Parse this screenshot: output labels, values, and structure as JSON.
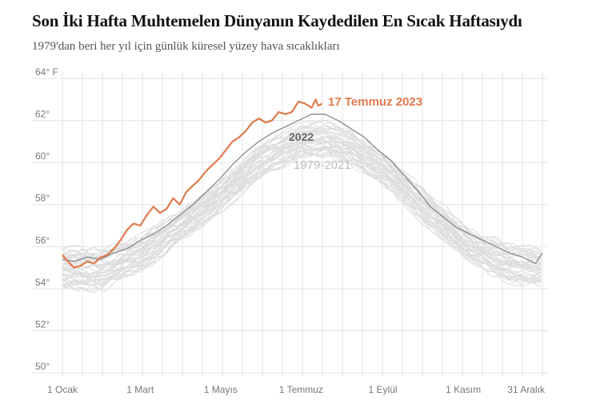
{
  "header": {
    "title": "Son İki Hafta Muhtemelen Dünyanın Kaydedilen En Sıcak Haftasıydı",
    "subtitle": "1979'dan beri her yıl için günlük küresel yüzey hava sıcaklıkları"
  },
  "colors": {
    "highlight": "#e07b4f",
    "year2022": "#888888",
    "history": "#dddddd",
    "grid": "#e3e3e3"
  },
  "chart_data": {
    "type": "line",
    "title": "Son İki Hafta Muhtemelen Dünyanın Kaydedilen En Sıcak Haftasıydı",
    "subtitle": "1979'dan beri her yıl için günlük küresel yüzey hava sıcaklıkları",
    "unit": "°F",
    "x_axis": {
      "range_day_of_year": [
        1,
        365
      ],
      "ticks": [
        {
          "day": 1,
          "label": "1 Ocak"
        },
        {
          "day": 60,
          "label": "1 Mart"
        },
        {
          "day": 121,
          "label": "1 Mayıs"
        },
        {
          "day": 182,
          "label": "1 Temmuz"
        },
        {
          "day": 244,
          "label": "1 Eylül"
        },
        {
          "day": 305,
          "label": "1 Kasım"
        },
        {
          "day": 365,
          "label": "31 Aralık"
        }
      ]
    },
    "y_axis": {
      "range": [
        50,
        64
      ],
      "ticks": [
        {
          "value": 64,
          "label": "64° F"
        },
        {
          "value": 62,
          "label": "62°"
        },
        {
          "value": 60,
          "label": "60°"
        },
        {
          "value": 58,
          "label": "58°"
        },
        {
          "value": 56,
          "label": "56°"
        },
        {
          "value": 54,
          "label": "54°"
        },
        {
          "value": 52,
          "label": "52°"
        },
        {
          "value": 50,
          "label": "50°"
        }
      ]
    },
    "grid": true,
    "series": [
      {
        "name": "17 Temmuz 2023",
        "color": "#e07b4f",
        "x": [
          1,
          5,
          10,
          15,
          20,
          25,
          30,
          35,
          40,
          45,
          50,
          55,
          60,
          65,
          70,
          75,
          80,
          85,
          90,
          95,
          100,
          105,
          110,
          115,
          120,
          125,
          130,
          135,
          140,
          145,
          150,
          155,
          160,
          165,
          170,
          175,
          180,
          185,
          190,
          193,
          195,
          198
        ],
        "y": [
          55.6,
          55.3,
          55.0,
          55.1,
          55.3,
          55.2,
          55.5,
          55.6,
          55.9,
          56.3,
          56.8,
          57.1,
          57.0,
          57.5,
          57.9,
          57.6,
          57.8,
          58.3,
          58.0,
          58.6,
          58.9,
          59.2,
          59.6,
          59.9,
          60.2,
          60.6,
          61.0,
          61.2,
          61.5,
          61.9,
          62.1,
          61.9,
          62.0,
          62.4,
          62.3,
          62.4,
          62.9,
          62.8,
          62.6,
          63.0,
          62.7,
          62.8
        ]
      },
      {
        "name": "2022",
        "color": "#888888",
        "x": [
          1,
          10,
          20,
          30,
          40,
          50,
          60,
          70,
          80,
          90,
          100,
          110,
          120,
          130,
          140,
          150,
          160,
          170,
          180,
          190,
          200,
          210,
          220,
          230,
          240,
          250,
          260,
          270,
          280,
          290,
          300,
          310,
          320,
          330,
          340,
          350,
          360,
          365
        ],
        "y": [
          55.4,
          55.3,
          55.5,
          55.4,
          55.7,
          55.9,
          56.3,
          56.6,
          57.0,
          57.5,
          58.0,
          58.6,
          59.2,
          59.9,
          60.5,
          61.0,
          61.4,
          61.7,
          62.0,
          62.3,
          62.3,
          62.0,
          61.6,
          61.2,
          60.6,
          60.1,
          59.4,
          58.7,
          57.9,
          57.4,
          56.9,
          56.6,
          56.3,
          56.0,
          55.7,
          55.5,
          55.2,
          55.7
        ]
      },
      {
        "name": "1979-2021",
        "color": "#dddddd",
        "years": 43,
        "x": [
          1,
          30,
          60,
          90,
          120,
          150,
          180,
          200,
          220,
          250,
          280,
          310,
          340,
          365
        ],
        "y_min": [
          53.8,
          53.8,
          54.6,
          56.1,
          57.5,
          59.1,
          60.1,
          60.2,
          59.8,
          58.5,
          56.7,
          55.1,
          54.2,
          54.0
        ],
        "y_max": [
          56.1,
          56.0,
          56.6,
          57.8,
          59.2,
          60.9,
          61.9,
          62.0,
          61.6,
          60.3,
          58.6,
          57.0,
          56.2,
          56.0
        ]
      }
    ],
    "annotations": [
      "17 Temmuz 2023",
      "2022",
      "1979-2021"
    ]
  }
}
